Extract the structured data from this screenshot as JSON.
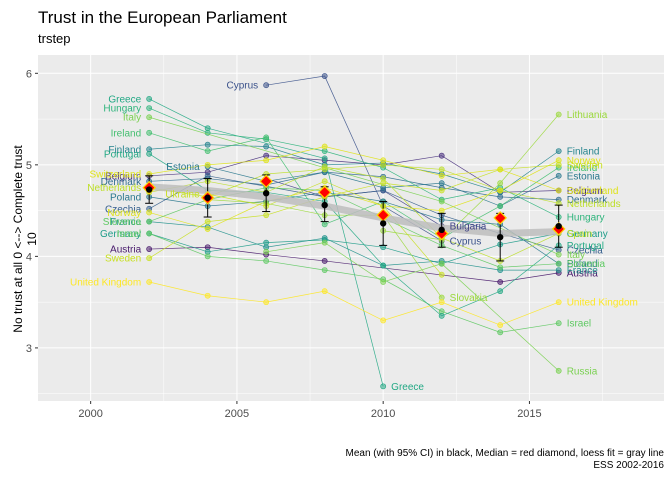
{
  "title": "Trust in the European Parliament",
  "subtitle": "trstep",
  "y_axis_label": "No trust at all 0 <--> Complete trust 10",
  "caption_line1": "Mean (with 95% CI) in black, Median = red diamond, loess fit = gray line",
  "caption_line2": "ESS 2002-2016",
  "colors": {
    "panel_bg": "#ebebeb",
    "grid": "#ffffff",
    "mean": "#000000",
    "median_fill": "#ff0000",
    "median_edge": "#ffd400",
    "loess": "#bdbdbd"
  },
  "chart_data": {
    "type": "line",
    "xlim": [
      1998.2,
      2019.6
    ],
    "ylim": [
      2.42,
      6.2
    ],
    "x_ticks": [
      "2000",
      "2005",
      "2010",
      "2015"
    ],
    "y_ticks": [
      "3",
      "4",
      "5",
      "6"
    ],
    "grid": true,
    "series": [
      {
        "name": "Austria",
        "color": "#481a6c",
        "label_left": "Austria",
        "label_right": "Austria",
        "points": [
          [
            2002,
            4.08
          ],
          [
            2004,
            4.1
          ],
          [
            2006,
            4.02
          ],
          [
            2008,
            3.95
          ],
          [
            2014,
            3.72
          ],
          [
            2016,
            3.82
          ]
        ]
      },
      {
        "name": "Belgium",
        "color": "#472f7d",
        "label_left": "Belgium",
        "label_right": "Belgium",
        "points": [
          [
            2002,
            4.88
          ],
          [
            2004,
            4.92
          ],
          [
            2006,
            5.1
          ],
          [
            2008,
            5.05
          ],
          [
            2010,
            5.0
          ],
          [
            2012,
            5.1
          ],
          [
            2014,
            4.7
          ],
          [
            2016,
            4.72
          ]
        ]
      },
      {
        "name": "Bulgaria",
        "color": "#414487",
        "label_left": "",
        "label_right": "Bulgaria",
        "points": [
          [
            2006,
            4.85
          ],
          [
            2008,
            4.65
          ],
          [
            2010,
            4.72
          ],
          [
            2012,
            4.33
          ]
        ]
      },
      {
        "name": "Cyprus",
        "color": "#3b528b",
        "label_left": "Cyprus",
        "label_right": "Cyprus",
        "points": [
          [
            2006,
            5.87
          ],
          [
            2008,
            5.97
          ],
          [
            2010,
            4.55
          ],
          [
            2012,
            4.17
          ]
        ]
      },
      {
        "name": "Czechia",
        "color": "#355f8d",
        "label_left": "Czechia",
        "label_right": "Czechia",
        "points": [
          [
            2002,
            4.52
          ],
          [
            2004,
            4.88
          ],
          [
            2008,
            4.65
          ],
          [
            2010,
            4.72
          ],
          [
            2012,
            4.45
          ],
          [
            2014,
            4.25
          ],
          [
            2016,
            4.07
          ]
        ]
      },
      {
        "name": "Denmark",
        "color": "#2f6c8e",
        "label_left": "Denmark",
        "label_right": "Denmark",
        "points": [
          [
            2002,
            4.82
          ],
          [
            2004,
            4.85
          ],
          [
            2006,
            4.78
          ],
          [
            2008,
            4.92
          ],
          [
            2010,
            4.87
          ],
          [
            2012,
            4.75
          ],
          [
            2014,
            4.65
          ],
          [
            2016,
            4.62
          ]
        ]
      },
      {
        "name": "Estonia",
        "color": "#2a788e",
        "label_left": "Estonia",
        "label_right": "Estonia",
        "points": [
          [
            2004,
            4.98
          ],
          [
            2006,
            4.82
          ],
          [
            2008,
            4.92
          ],
          [
            2010,
            4.75
          ],
          [
            2012,
            4.8
          ],
          [
            2014,
            4.55
          ],
          [
            2016,
            4.88
          ]
        ]
      },
      {
        "name": "Finland",
        "color": "#25848e",
        "label_left": "Finland",
        "label_right": "Finland",
        "points": [
          [
            2002,
            5.17
          ],
          [
            2004,
            5.22
          ],
          [
            2006,
            5.2
          ],
          [
            2008,
            5.0
          ],
          [
            2010,
            5.02
          ],
          [
            2012,
            4.9
          ],
          [
            2014,
            4.7
          ],
          [
            2016,
            5.15
          ]
        ]
      },
      {
        "name": "France",
        "color": "#21918c",
        "label_left": "France",
        "label_right": "France",
        "points": [
          [
            2002,
            4.38
          ],
          [
            2004,
            4.32
          ],
          [
            2006,
            4.1
          ],
          [
            2008,
            4.2
          ],
          [
            2010,
            3.9
          ],
          [
            2012,
            3.95
          ],
          [
            2014,
            3.85
          ],
          [
            2016,
            3.85
          ]
        ]
      },
      {
        "name": "Germany",
        "color": "#1e9c89",
        "label_left": "Germany",
        "label_right": "Germany",
        "points": [
          [
            2002,
            4.25
          ],
          [
            2004,
            4.05
          ],
          [
            2006,
            4.15
          ],
          [
            2008,
            4.18
          ],
          [
            2010,
            4.1
          ],
          [
            2012,
            3.92
          ],
          [
            2014,
            4.13
          ],
          [
            2016,
            4.25
          ]
        ]
      },
      {
        "name": "Greece",
        "color": "#22a884",
        "label_left": "Greece",
        "label_right": "Greece",
        "points": [
          [
            2002,
            5.72
          ],
          [
            2004,
            5.4
          ],
          [
            2008,
            5.07
          ],
          [
            2010,
            2.58
          ]
        ]
      },
      {
        "name": "Hungary",
        "color": "#2fb47c",
        "label_left": "Hungary",
        "label_right": "Hungary",
        "points": [
          [
            2002,
            5.62
          ],
          [
            2004,
            5.35
          ],
          [
            2006,
            5.28
          ],
          [
            2008,
            5.15
          ],
          [
            2010,
            4.97
          ],
          [
            2012,
            4.62
          ],
          [
            2014,
            4.75
          ],
          [
            2016,
            4.43
          ]
        ]
      },
      {
        "name": "Ireland",
        "color": "#44bf70",
        "label_left": "Ireland",
        "label_right": "Ireland",
        "points": [
          [
            2002,
            5.35
          ],
          [
            2004,
            5.15
          ],
          [
            2006,
            5.3
          ],
          [
            2008,
            4.35
          ],
          [
            2010,
            4.6
          ],
          [
            2012,
            4.2
          ],
          [
            2014,
            4.55
          ],
          [
            2016,
            4.97
          ]
        ]
      },
      {
        "name": "Israel",
        "color": "#5ec962",
        "label_left": "Israel",
        "label_right": "Israel",
        "points": [
          [
            2002,
            4.25
          ],
          [
            2004,
            4.0
          ],
          [
            2006,
            3.95
          ],
          [
            2008,
            3.85
          ],
          [
            2010,
            3.75
          ],
          [
            2012,
            3.4
          ],
          [
            2014,
            3.17
          ],
          [
            2016,
            3.27
          ]
        ]
      },
      {
        "name": "Italy",
        "color": "#7ad151",
        "label_left": "Italy",
        "label_right": "Italy",
        "points": [
          [
            2002,
            5.52
          ],
          [
            2012,
            4.6
          ],
          [
            2016,
            4.02
          ]
        ]
      },
      {
        "name": "Lithuania",
        "color": "#9bd93c",
        "label_left": "",
        "label_right": "Lithuania",
        "points": [
          [
            2010,
            4.28
          ],
          [
            2012,
            4.18
          ],
          [
            2014,
            4.8
          ],
          [
            2016,
            5.55
          ]
        ]
      },
      {
        "name": "Netherlands",
        "color": "#bddf26",
        "label_left": "Netherlands",
        "label_right": "Netherlands",
        "points": [
          [
            2002,
            4.75
          ],
          [
            2004,
            4.65
          ],
          [
            2006,
            4.9
          ],
          [
            2008,
            4.95
          ],
          [
            2010,
            5.0
          ],
          [
            2012,
            4.95
          ],
          [
            2014,
            4.72
          ],
          [
            2016,
            4.58
          ]
        ]
      },
      {
        "name": "Norway",
        "color": "#dfe318",
        "label_left": "Norway",
        "label_right": "Norway",
        "points": [
          [
            2002,
            4.48
          ],
          [
            2004,
            4.3
          ],
          [
            2006,
            4.6
          ],
          [
            2008,
            4.75
          ],
          [
            2010,
            4.55
          ],
          [
            2012,
            4.5
          ],
          [
            2014,
            4.72
          ],
          [
            2016,
            5.05
          ]
        ]
      },
      {
        "name": "Poland",
        "color": "#2a788e",
        "label_left": "Poland",
        "label_right": "Poland",
        "points": [
          [
            2002,
            4.65
          ],
          [
            2004,
            4.55
          ],
          [
            2006,
            4.6
          ],
          [
            2008,
            4.7
          ],
          [
            2010,
            4.6
          ],
          [
            2012,
            4.4
          ],
          [
            2014,
            4.35
          ],
          [
            2016,
            3.92
          ]
        ]
      },
      {
        "name": "Portugal",
        "color": "#22a884",
        "label_left": "Portugal",
        "label_right": "Portugal",
        "points": [
          [
            2002,
            5.12
          ],
          [
            2004,
            4.72
          ],
          [
            2006,
            4.7
          ],
          [
            2008,
            4.6
          ],
          [
            2010,
            3.9
          ],
          [
            2012,
            3.35
          ],
          [
            2014,
            3.62
          ],
          [
            2016,
            4.12
          ]
        ]
      },
      {
        "name": "Russia",
        "color": "#7ad151",
        "label_left": "",
        "label_right": "Russia",
        "points": [
          [
            2006,
            4.05
          ],
          [
            2008,
            4.15
          ],
          [
            2010,
            3.72
          ],
          [
            2012,
            3.92
          ],
          [
            2016,
            2.75
          ]
        ]
      },
      {
        "name": "Slovakia",
        "color": "#9bd93c",
        "label_left": "",
        "label_right": "Slovakia",
        "points": [
          [
            2004,
            4.62
          ],
          [
            2006,
            4.58
          ],
          [
            2008,
            4.45
          ],
          [
            2010,
            4.45
          ],
          [
            2012,
            3.55
          ]
        ]
      },
      {
        "name": "Slovenia",
        "color": "#5ec962",
        "label_left": "Slovenia",
        "label_right": "Slovenia",
        "points": [
          [
            2002,
            4.38
          ],
          [
            2004,
            4.62
          ],
          [
            2006,
            4.75
          ],
          [
            2008,
            4.72
          ],
          [
            2010,
            4.42
          ],
          [
            2012,
            4.12
          ],
          [
            2014,
            3.88
          ],
          [
            2016,
            3.92
          ]
        ]
      },
      {
        "name": "Spain",
        "color": "#bddf26",
        "label_left": "",
        "label_right": "Spain",
        "points": [
          [
            2002,
            4.7
          ],
          [
            2004,
            4.82
          ],
          [
            2006,
            4.7
          ],
          [
            2008,
            4.98
          ],
          [
            2010,
            4.85
          ],
          [
            2012,
            4.2
          ],
          [
            2014,
            3.95
          ],
          [
            2016,
            4.25
          ]
        ]
      },
      {
        "name": "Sweden",
        "color": "#c8e020",
        "label_left": "Sweden",
        "label_right": "Sweden",
        "points": [
          [
            2002,
            3.98
          ],
          [
            2004,
            4.38
          ],
          [
            2006,
            4.45
          ],
          [
            2008,
            4.65
          ],
          [
            2010,
            4.8
          ],
          [
            2012,
            4.72
          ],
          [
            2014,
            4.95
          ],
          [
            2016,
            5.0
          ]
        ]
      },
      {
        "name": "Switzerland",
        "color": "#dfe318",
        "label_left": "Switzerland",
        "label_right": "Switzerland",
        "points": [
          [
            2002,
            4.9
          ],
          [
            2004,
            5.0
          ],
          [
            2006,
            5.05
          ],
          [
            2008,
            5.2
          ],
          [
            2010,
            5.05
          ],
          [
            2012,
            4.88
          ],
          [
            2014,
            4.95
          ],
          [
            2016,
            4.72
          ]
        ]
      },
      {
        "name": "Ukraine",
        "color": "#c8e020",
        "label_left": "Ukraine",
        "label_right": "",
        "points": [
          [
            2004,
            4.68
          ],
          [
            2006,
            4.55
          ],
          [
            2008,
            4.82
          ],
          [
            2010,
            4.55
          ],
          [
            2012,
            3.8
          ]
        ]
      },
      {
        "name": "United Kingdom",
        "color": "#fde725",
        "label_left": "United Kingdom",
        "label_right": "United Kingdom",
        "points": [
          [
            2002,
            3.72
          ],
          [
            2004,
            3.57
          ],
          [
            2006,
            3.5
          ],
          [
            2008,
            3.62
          ],
          [
            2010,
            3.3
          ],
          [
            2012,
            3.5
          ],
          [
            2014,
            3.25
          ],
          [
            2016,
            3.5
          ]
        ]
      }
    ],
    "mean": [
      {
        "x": 2002,
        "y": 4.73,
        "lo": 4.58,
        "hi": 4.88
      },
      {
        "x": 2004,
        "y": 4.64,
        "lo": 4.43,
        "hi": 4.85
      },
      {
        "x": 2006,
        "y": 4.69,
        "lo": 4.49,
        "hi": 4.89
      },
      {
        "x": 2008,
        "y": 4.56,
        "lo": 4.38,
        "hi": 4.76
      },
      {
        "x": 2010,
        "y": 4.36,
        "lo": 4.12,
        "hi": 4.6
      },
      {
        "x": 2012,
        "y": 4.29,
        "lo": 4.1,
        "hi": 4.47
      },
      {
        "x": 2014,
        "y": 4.21,
        "lo": 3.95,
        "hi": 4.47
      },
      {
        "x": 2016,
        "y": 4.33,
        "lo": 4.1,
        "hi": 4.56
      }
    ],
    "median": [
      {
        "x": 2002,
        "y": 4.75
      },
      {
        "x": 2004,
        "y": 4.64
      },
      {
        "x": 2006,
        "y": 4.82
      },
      {
        "x": 2008,
        "y": 4.7
      },
      {
        "x": 2010,
        "y": 4.45
      },
      {
        "x": 2012,
        "y": 4.25
      },
      {
        "x": 2014,
        "y": 4.42
      },
      {
        "x": 2016,
        "y": 4.3
      }
    ],
    "loess": [
      {
        "x": 2002,
        "y": 4.76
      },
      {
        "x": 2004,
        "y": 4.72
      },
      {
        "x": 2006,
        "y": 4.65
      },
      {
        "x": 2008,
        "y": 4.55
      },
      {
        "x": 2010,
        "y": 4.42
      },
      {
        "x": 2012,
        "y": 4.31
      },
      {
        "x": 2014,
        "y": 4.25
      },
      {
        "x": 2016,
        "y": 4.27
      }
    ]
  }
}
